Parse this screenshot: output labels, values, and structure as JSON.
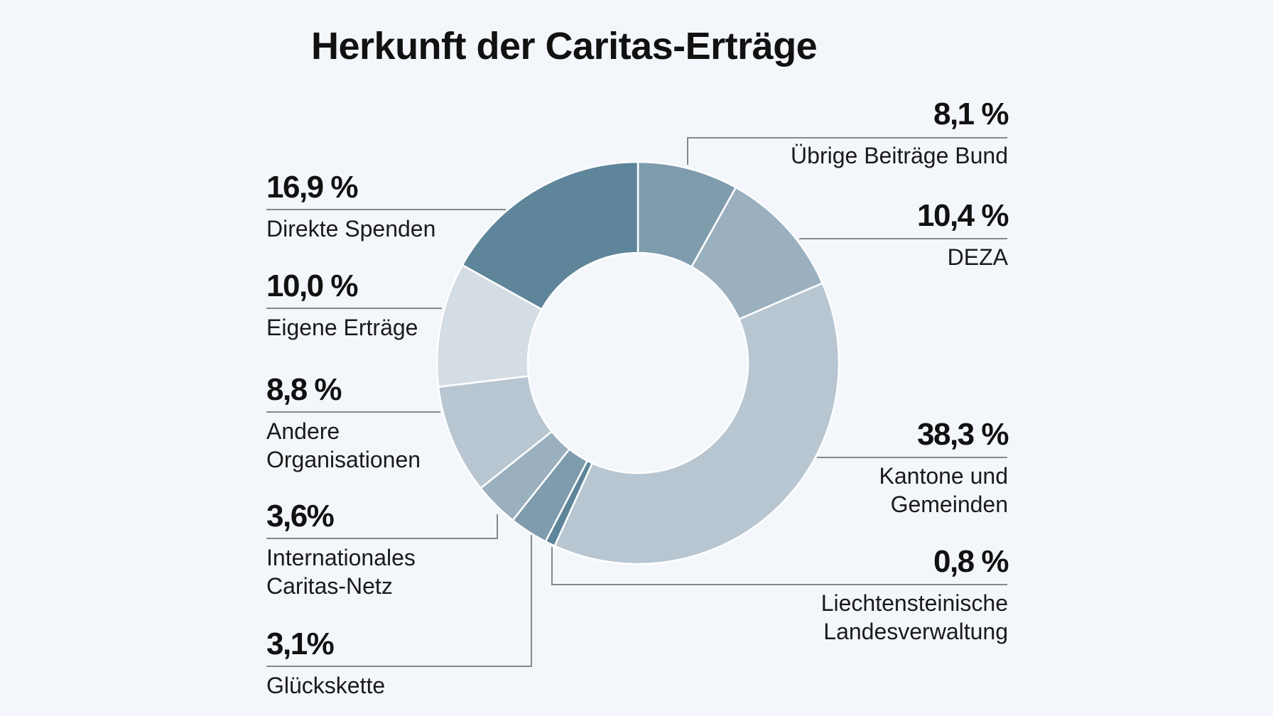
{
  "chart_data": {
    "type": "pie",
    "donut": true,
    "title": "Herkunft der Caritas-Erträge",
    "slices": [
      {
        "label": "Übrige Beiträge Bund",
        "value": 8.1,
        "display": "8,1 %",
        "color": "#7f9cad"
      },
      {
        "label": "DEZA",
        "value": 10.4,
        "display": "10,4 %",
        "color": "#9bb0bf"
      },
      {
        "label": "Kantone und Gemeinden",
        "value": 38.3,
        "display": "38,3 %",
        "color": "#b8c6d2"
      },
      {
        "label": "Liechtensteinische Landesverwaltung",
        "value": 0.8,
        "display": "0,8 %",
        "color": "#5e8599"
      },
      {
        "label": "Glückskette",
        "value": 3.1,
        "display": "3,1%",
        "color": "#7f9cad"
      },
      {
        "label": "Internationales Caritas-Netz",
        "value": 3.6,
        "display": "3,6%",
        "color": "#9bb0bf"
      },
      {
        "label": "Andere Organisationen",
        "value": 8.8,
        "display": "8,8 %",
        "color": "#b8c6d2"
      },
      {
        "label": "Eigene Erträge",
        "value": 10.0,
        "display": "10,0 %",
        "color": "#d5dde4"
      },
      {
        "label": "Direkte Spenden",
        "value": 16.9,
        "display": "16,9 %",
        "color": "#5e8599"
      }
    ]
  },
  "labels": {
    "uebrige": {
      "pct": "8,1 %",
      "name": "Übrige Beiträge Bund"
    },
    "deza": {
      "pct": "10,4 %",
      "name": "DEZA"
    },
    "kantone": {
      "pct": "38,3 %",
      "name": "Kantone und\nGemeinden"
    },
    "liechtenstein": {
      "pct": "0,8 %",
      "name": "Liechtensteinische\nLandesverwaltung"
    },
    "spenden": {
      "pct": "16,9 %",
      "name": "Direkte Spenden"
    },
    "eigene": {
      "pct": "10,0 %",
      "name": "Eigene Erträge"
    },
    "andere": {
      "pct": "8,8 %",
      "name": "Andere\nOrganisationen"
    },
    "internationales": {
      "pct": "3,6%",
      "name": "Internationales\nCaritas-Netz"
    },
    "glueckskette": {
      "pct": "3,1%",
      "name": "Glückskette"
    }
  },
  "colors": {
    "background": "#f3f6fb",
    "leader": "#888888",
    "text": "#111111"
  }
}
